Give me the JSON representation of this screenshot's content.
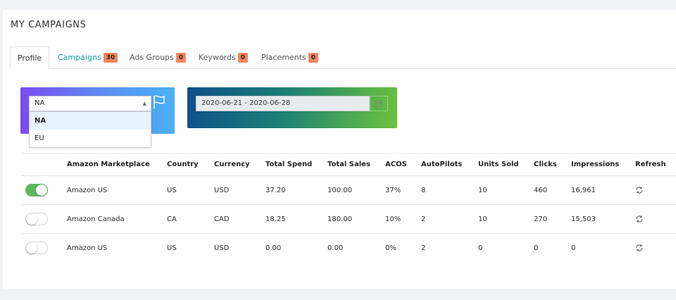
{
  "page": {
    "title": "MY CAMPAIGNS"
  },
  "tabs": [
    {
      "label": "Profile",
      "badge": ""
    },
    {
      "label": "Campaigns",
      "badge": "30"
    },
    {
      "label": "Ads Groups",
      "badge": "0"
    },
    {
      "label": "Keywords",
      "badge": "0"
    },
    {
      "label": "Placements",
      "badge": "0"
    }
  ],
  "region": {
    "selected": "NA",
    "options": [
      "NA",
      "EU"
    ],
    "icon": "flag-icon"
  },
  "date_range": {
    "value": "2020-06-21 - 2020-06-28",
    "icon": "calendar-icon"
  },
  "table": {
    "headers": [
      "",
      "Amazon Marketplace",
      "Country",
      "Currency",
      "Total Spend",
      "Total Sales",
      "ACOS",
      "AutoPilots",
      "Units Sold",
      "Clicks",
      "Impressions",
      "Refresh"
    ],
    "rows": [
      {
        "enabled": true,
        "marketplace": "Amazon US",
        "country": "US",
        "currency": "USD",
        "spend": "37.20",
        "sales": "100.00",
        "acos": "37%",
        "autopilots": "8",
        "units": "10",
        "clicks": "460",
        "impressions": "16,961"
      },
      {
        "enabled": false,
        "marketplace": "Amazon Canada",
        "country": "CA",
        "currency": "CAD",
        "spend": "18.25",
        "sales": "180.00",
        "acos": "10%",
        "autopilots": "2",
        "units": "10",
        "clicks": "270",
        "impressions": "15,503"
      },
      {
        "enabled": false,
        "marketplace": "Amazon US",
        "country": "US",
        "currency": "USD",
        "spend": "0.00",
        "sales": "0.00",
        "acos": "0%",
        "autopilots": "2",
        "units": "0",
        "clicks": "0",
        "impressions": "0"
      }
    ]
  },
  "colors": {
    "badge": "#f6855e",
    "toggle_on": "#5cb85c",
    "active_tab_text": "#1aa0a5"
  }
}
